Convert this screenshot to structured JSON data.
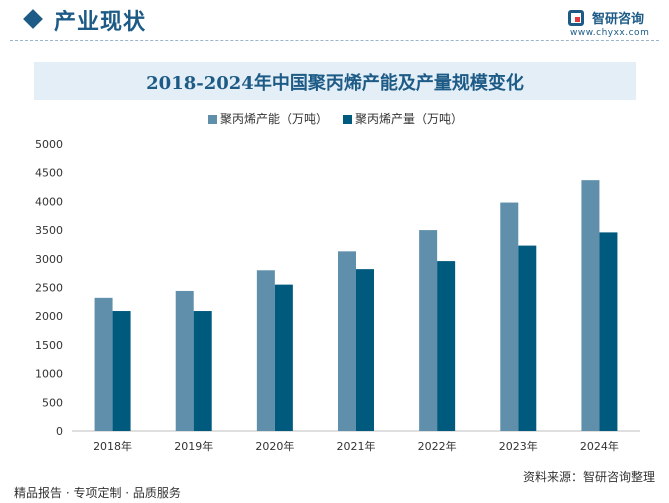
{
  "header": {
    "title": "产业现状",
    "logo_text": "智研咨询",
    "logo_url": "www.chyxx.com"
  },
  "footer": {
    "left": "精品报告 · 专项定制 · 品质服务",
    "source": "资料来源：智研咨询整理"
  },
  "colors": {
    "capacity": "#5f8fab",
    "output": "#005a7e",
    "brand": "#1d5b86"
  },
  "chart_data": {
    "type": "bar",
    "title": "2018-2024年中国聚丙烯产能及产量规模变化",
    "categories": [
      "2018年",
      "2019年",
      "2020年",
      "2021年",
      "2022年",
      "2023年",
      "2024年"
    ],
    "series": [
      {
        "name": "聚丙烯产能（万吨）",
        "values": [
          2320,
          2440,
          2800,
          3130,
          3500,
          3980,
          4370
        ]
      },
      {
        "name": "聚丙烯产量（万吨）",
        "values": [
          2090,
          2090,
          2550,
          2820,
          2960,
          3230,
          3460
        ]
      }
    ],
    "y_ticks": [
      "0",
      "500",
      "1000",
      "1500",
      "2000",
      "2500",
      "3000",
      "3500",
      "4000",
      "4500",
      "5000"
    ],
    "ylim": [
      0,
      5000
    ],
    "grid": false,
    "legend_position": "top-center"
  }
}
